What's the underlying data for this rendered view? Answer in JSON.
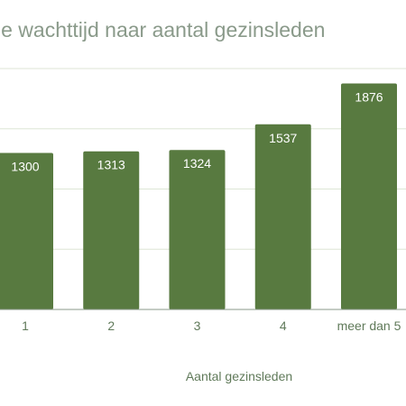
{
  "chart_data": {
    "type": "bar",
    "title": "le wachttijd naar aantal gezinsleden",
    "xlabel": "Aantal gezinsleden",
    "ylabel": "",
    "categories": [
      "1",
      "2",
      "3",
      "4",
      "meer dan 5"
    ],
    "values": [
      1300,
      1313,
      1324,
      1537,
      1876
    ],
    "ylim": [
      0,
      2000
    ],
    "grid": true,
    "legend": "none",
    "colors": {
      "bar": "#587a40",
      "grid": "#dde6d6",
      "axis": "#8a9a8a",
      "title": "#8a9a8a",
      "tick_label": "#607a5a",
      "data_label": "#ffffff"
    }
  }
}
